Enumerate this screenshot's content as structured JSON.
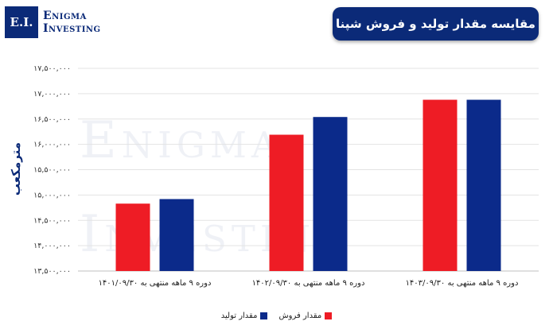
{
  "logo": {
    "mark": "E.I.",
    "line1": "Enigma",
    "line2": "Investing"
  },
  "watermark": {
    "line1": "Enigma",
    "line2": "Investing"
  },
  "chart_data": {
    "type": "bar",
    "title": "مقایسه مقدار تولید و فروش شپنا",
    "ylabel": "مترمکعب",
    "xlabel": "",
    "categories": [
      "دوره ۹ ماهه منتهی به ۱۴۰۱/۰۹/۳۰",
      "دوره ۹ ماهه منتهی به ۱۴۰۲/۰۹/۳۰",
      "دوره ۹ ماهه منتهی به ۱۴۰۳/۰۹/۳۰"
    ],
    "series": [
      {
        "name": "مقدار فروش",
        "color": "#ee1c25",
        "values": [
          14830000,
          16190000,
          16880000
        ]
      },
      {
        "name": "مقدار تولید",
        "color": "#0b2a8a",
        "values": [
          14920000,
          16540000,
          16880000
        ]
      }
    ],
    "ylim": [
      13500000,
      17500000
    ],
    "yticks": [
      "۱۳,۵۰۰,۰۰۰",
      "۱۴,۰۰۰,۰۰۰",
      "۱۴,۵۰۰,۰۰۰",
      "۱۵,۰۰۰,۰۰۰",
      "۱۵,۵۰۰,۰۰۰",
      "۱۶,۰۰۰,۰۰۰",
      "۱۶,۵۰۰,۰۰۰",
      "۱۷,۰۰۰,۰۰۰",
      "۱۷,۵۰۰,۰۰۰"
    ],
    "grid": true,
    "legend_position": "bottom"
  }
}
